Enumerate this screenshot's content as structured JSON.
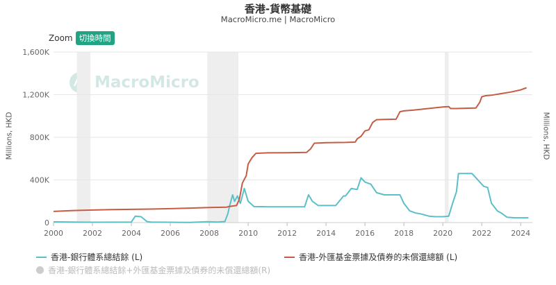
{
  "header": {
    "title": "香港-貨幣基礎",
    "subtitle": "MacroMicro.me | MacroMicro"
  },
  "controls": {
    "zoom_label": "Zoom",
    "zoom_button": "切換時間"
  },
  "watermark": "MacroMicro",
  "legend": {
    "items": [
      {
        "label": "香港-銀行體系總結餘 (L)",
        "color": "#5bbfc9"
      },
      {
        "label": "香港-外匯基金票據及債券的未償還總額 (L)",
        "color": "#c65b45"
      },
      {
        "label": "香港-銀行體系總結餘+外匯基金票據及債券的未償還總額(R)",
        "color": "#cccccc",
        "hidden": true
      }
    ]
  },
  "chart_data": {
    "type": "line",
    "title": "香港-貨幣基礎",
    "ylabel_left": "Millions, HKD",
    "ylabel_right": "Millions, HKD",
    "xlim": [
      2000,
      2024.6
    ],
    "ylim": [
      0,
      1600000
    ],
    "x_ticks": [
      "2000",
      "2002",
      "2004",
      "2006",
      "2008",
      "2010",
      "2012",
      "2014",
      "2016",
      "2018",
      "2020",
      "2022",
      "2024"
    ],
    "y_ticks": [
      "0",
      "400K",
      "800K",
      "1,200K",
      "1,600K"
    ],
    "y_tick_values": [
      0,
      400000,
      800000,
      1200000,
      1600000
    ],
    "grid": true,
    "legend_position": "bottom",
    "shaded_periods": [
      [
        2001.2,
        2001.9
      ],
      [
        2007.9,
        2009.5
      ],
      [
        2020.1,
        2020.3
      ]
    ],
    "series": [
      {
        "name": "香港-銀行體系總結餘 (L)",
        "color": "#5bbfc9",
        "points": [
          [
            2000.0,
            7000
          ],
          [
            2001.0,
            5000
          ],
          [
            2002.0,
            3000
          ],
          [
            2003.0,
            4000
          ],
          [
            2004.0,
            5000
          ],
          [
            2004.2,
            60000
          ],
          [
            2004.5,
            55000
          ],
          [
            2004.8,
            10000
          ],
          [
            2005.0,
            5000
          ],
          [
            2006.0,
            3000
          ],
          [
            2007.0,
            2000
          ],
          [
            2007.9,
            8000
          ],
          [
            2008.4,
            5000
          ],
          [
            2008.8,
            10000
          ],
          [
            2008.95,
            80000
          ],
          [
            2009.05,
            160000
          ],
          [
            2009.2,
            260000
          ],
          [
            2009.3,
            200000
          ],
          [
            2009.45,
            250000
          ],
          [
            2009.6,
            180000
          ],
          [
            2009.8,
            320000
          ],
          [
            2010.0,
            200000
          ],
          [
            2010.3,
            150000
          ],
          [
            2011.0,
            148000
          ],
          [
            2012.0,
            148000
          ],
          [
            2012.9,
            148000
          ],
          [
            2013.1,
            260000
          ],
          [
            2013.3,
            200000
          ],
          [
            2013.6,
            160000
          ],
          [
            2014.0,
            160000
          ],
          [
            2014.5,
            160000
          ],
          [
            2014.9,
            250000
          ],
          [
            2015.0,
            250000
          ],
          [
            2015.3,
            320000
          ],
          [
            2015.6,
            310000
          ],
          [
            2015.8,
            420000
          ],
          [
            2016.0,
            380000
          ],
          [
            2016.3,
            360000
          ],
          [
            2016.6,
            280000
          ],
          [
            2017.0,
            260000
          ],
          [
            2017.5,
            260000
          ],
          [
            2017.8,
            260000
          ],
          [
            2018.0,
            180000
          ],
          [
            2018.3,
            110000
          ],
          [
            2018.6,
            90000
          ],
          [
            2018.9,
            80000
          ],
          [
            2019.3,
            60000
          ],
          [
            2019.6,
            55000
          ],
          [
            2020.0,
            55000
          ],
          [
            2020.3,
            60000
          ],
          [
            2020.5,
            180000
          ],
          [
            2020.7,
            290000
          ],
          [
            2020.8,
            460000
          ],
          [
            2021.0,
            460000
          ],
          [
            2021.5,
            460000
          ],
          [
            2021.7,
            420000
          ],
          [
            2021.9,
            380000
          ],
          [
            2022.1,
            340000
          ],
          [
            2022.3,
            330000
          ],
          [
            2022.5,
            180000
          ],
          [
            2022.8,
            110000
          ],
          [
            2023.0,
            90000
          ],
          [
            2023.3,
            50000
          ],
          [
            2023.7,
            45000
          ],
          [
            2024.0,
            45000
          ],
          [
            2024.4,
            45000
          ]
        ]
      },
      {
        "name": "香港-外匯基金票據及債券的未償還總額 (L)",
        "color": "#c65b45",
        "points": [
          [
            2000.0,
            105000
          ],
          [
            2001.0,
            113000
          ],
          [
            2002.0,
            118000
          ],
          [
            2003.0,
            122000
          ],
          [
            2004.0,
            124000
          ],
          [
            2005.0,
            127000
          ],
          [
            2006.0,
            131000
          ],
          [
            2007.0,
            136000
          ],
          [
            2008.0,
            142000
          ],
          [
            2008.9,
            145000
          ],
          [
            2009.0,
            150000
          ],
          [
            2009.4,
            160000
          ],
          [
            2009.55,
            220000
          ],
          [
            2009.7,
            370000
          ],
          [
            2009.9,
            440000
          ],
          [
            2010.0,
            550000
          ],
          [
            2010.2,
            610000
          ],
          [
            2010.4,
            650000
          ],
          [
            2011.0,
            654000
          ],
          [
            2012.0,
            655000
          ],
          [
            2013.0,
            659000
          ],
          [
            2013.2,
            690000
          ],
          [
            2013.4,
            745000
          ],
          [
            2014.0,
            750000
          ],
          [
            2015.0,
            752000
          ],
          [
            2015.5,
            755000
          ],
          [
            2015.6,
            785000
          ],
          [
            2015.8,
            810000
          ],
          [
            2016.0,
            860000
          ],
          [
            2016.2,
            870000
          ],
          [
            2016.4,
            940000
          ],
          [
            2016.6,
            965000
          ],
          [
            2017.0,
            968000
          ],
          [
            2017.6,
            970000
          ],
          [
            2017.8,
            1040000
          ],
          [
            2018.0,
            1048000
          ],
          [
            2018.5,
            1055000
          ],
          [
            2019.0,
            1065000
          ],
          [
            2019.5,
            1075000
          ],
          [
            2020.0,
            1085000
          ],
          [
            2020.3,
            1088000
          ],
          [
            2020.4,
            1070000
          ],
          [
            2020.7,
            1070000
          ],
          [
            2021.0,
            1072000
          ],
          [
            2021.5,
            1074000
          ],
          [
            2021.7,
            1075000
          ],
          [
            2021.9,
            1130000
          ],
          [
            2022.0,
            1180000
          ],
          [
            2022.2,
            1190000
          ],
          [
            2022.5,
            1195000
          ],
          [
            2023.0,
            1210000
          ],
          [
            2023.5,
            1225000
          ],
          [
            2024.0,
            1245000
          ],
          [
            2024.3,
            1265000
          ]
        ]
      }
    ]
  }
}
